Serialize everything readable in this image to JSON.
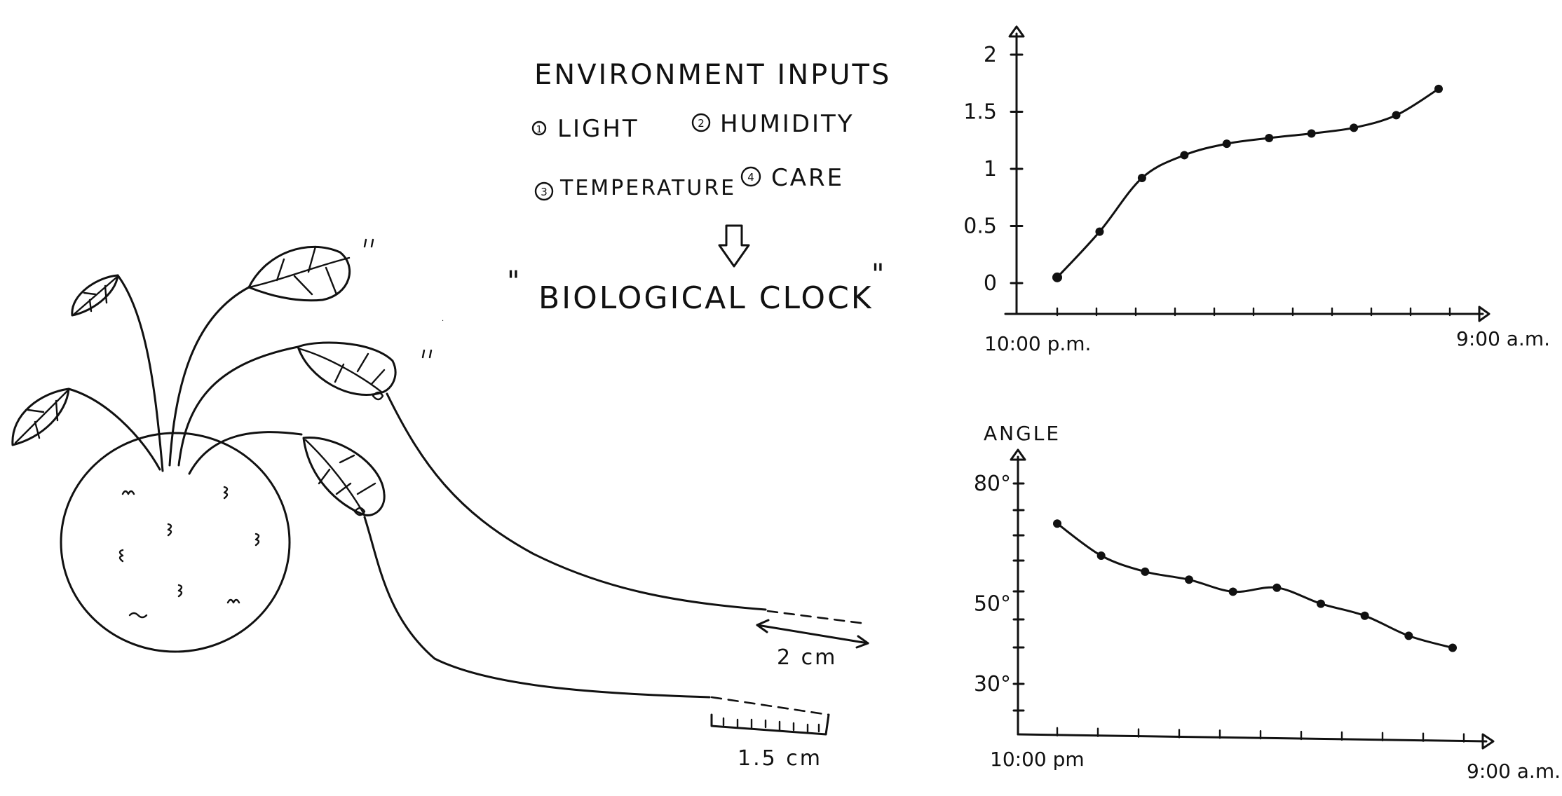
{
  "inputs": {
    "title": "ENVIRONMENT INPUTS",
    "items": [
      {
        "num": "1",
        "label": "LIGHT"
      },
      {
        "num": "2",
        "label": "HUMIDITY"
      },
      {
        "num": "3",
        "label": "TEMPERATURE"
      },
      {
        "num": "4",
        "label": "CARE"
      }
    ],
    "result": "BIOLOGICAL CLOCK",
    "arrow_icon": "down-arrow-icon"
  },
  "plant": {
    "measure_upper": "2 cm",
    "measure_lower": "1.5 cm"
  },
  "chart_data": [
    {
      "type": "line",
      "title": "",
      "ylabel": "",
      "xlabel": "",
      "ylim": [
        0,
        2
      ],
      "yticks": [
        "0",
        "0.5",
        "1",
        "1.5",
        "2"
      ],
      "xtick_labels": [
        "10:00 p.m.",
        "9:00 a.m."
      ],
      "x": [
        0,
        1,
        2,
        3,
        4,
        5,
        6,
        7,
        8,
        9
      ],
      "values": [
        0.05,
        0.45,
        0.92,
        1.12,
        1.22,
        1.27,
        1.31,
        1.36,
        1.47,
        1.7
      ],
      "grid": false
    },
    {
      "type": "line",
      "title": "",
      "ylabel": "ANGLE",
      "xlabel": "",
      "ylim": [
        20,
        90
      ],
      "yticks": [
        "30°",
        "50°",
        "80°"
      ],
      "xtick_labels": [
        "10:00 pm",
        "9:00 a.m."
      ],
      "x": [
        0,
        1,
        2,
        3,
        4,
        5,
        6,
        7,
        8,
        9
      ],
      "values": [
        70,
        62,
        58,
        56,
        53,
        54,
        50,
        47,
        42,
        39
      ],
      "grid": false
    }
  ]
}
